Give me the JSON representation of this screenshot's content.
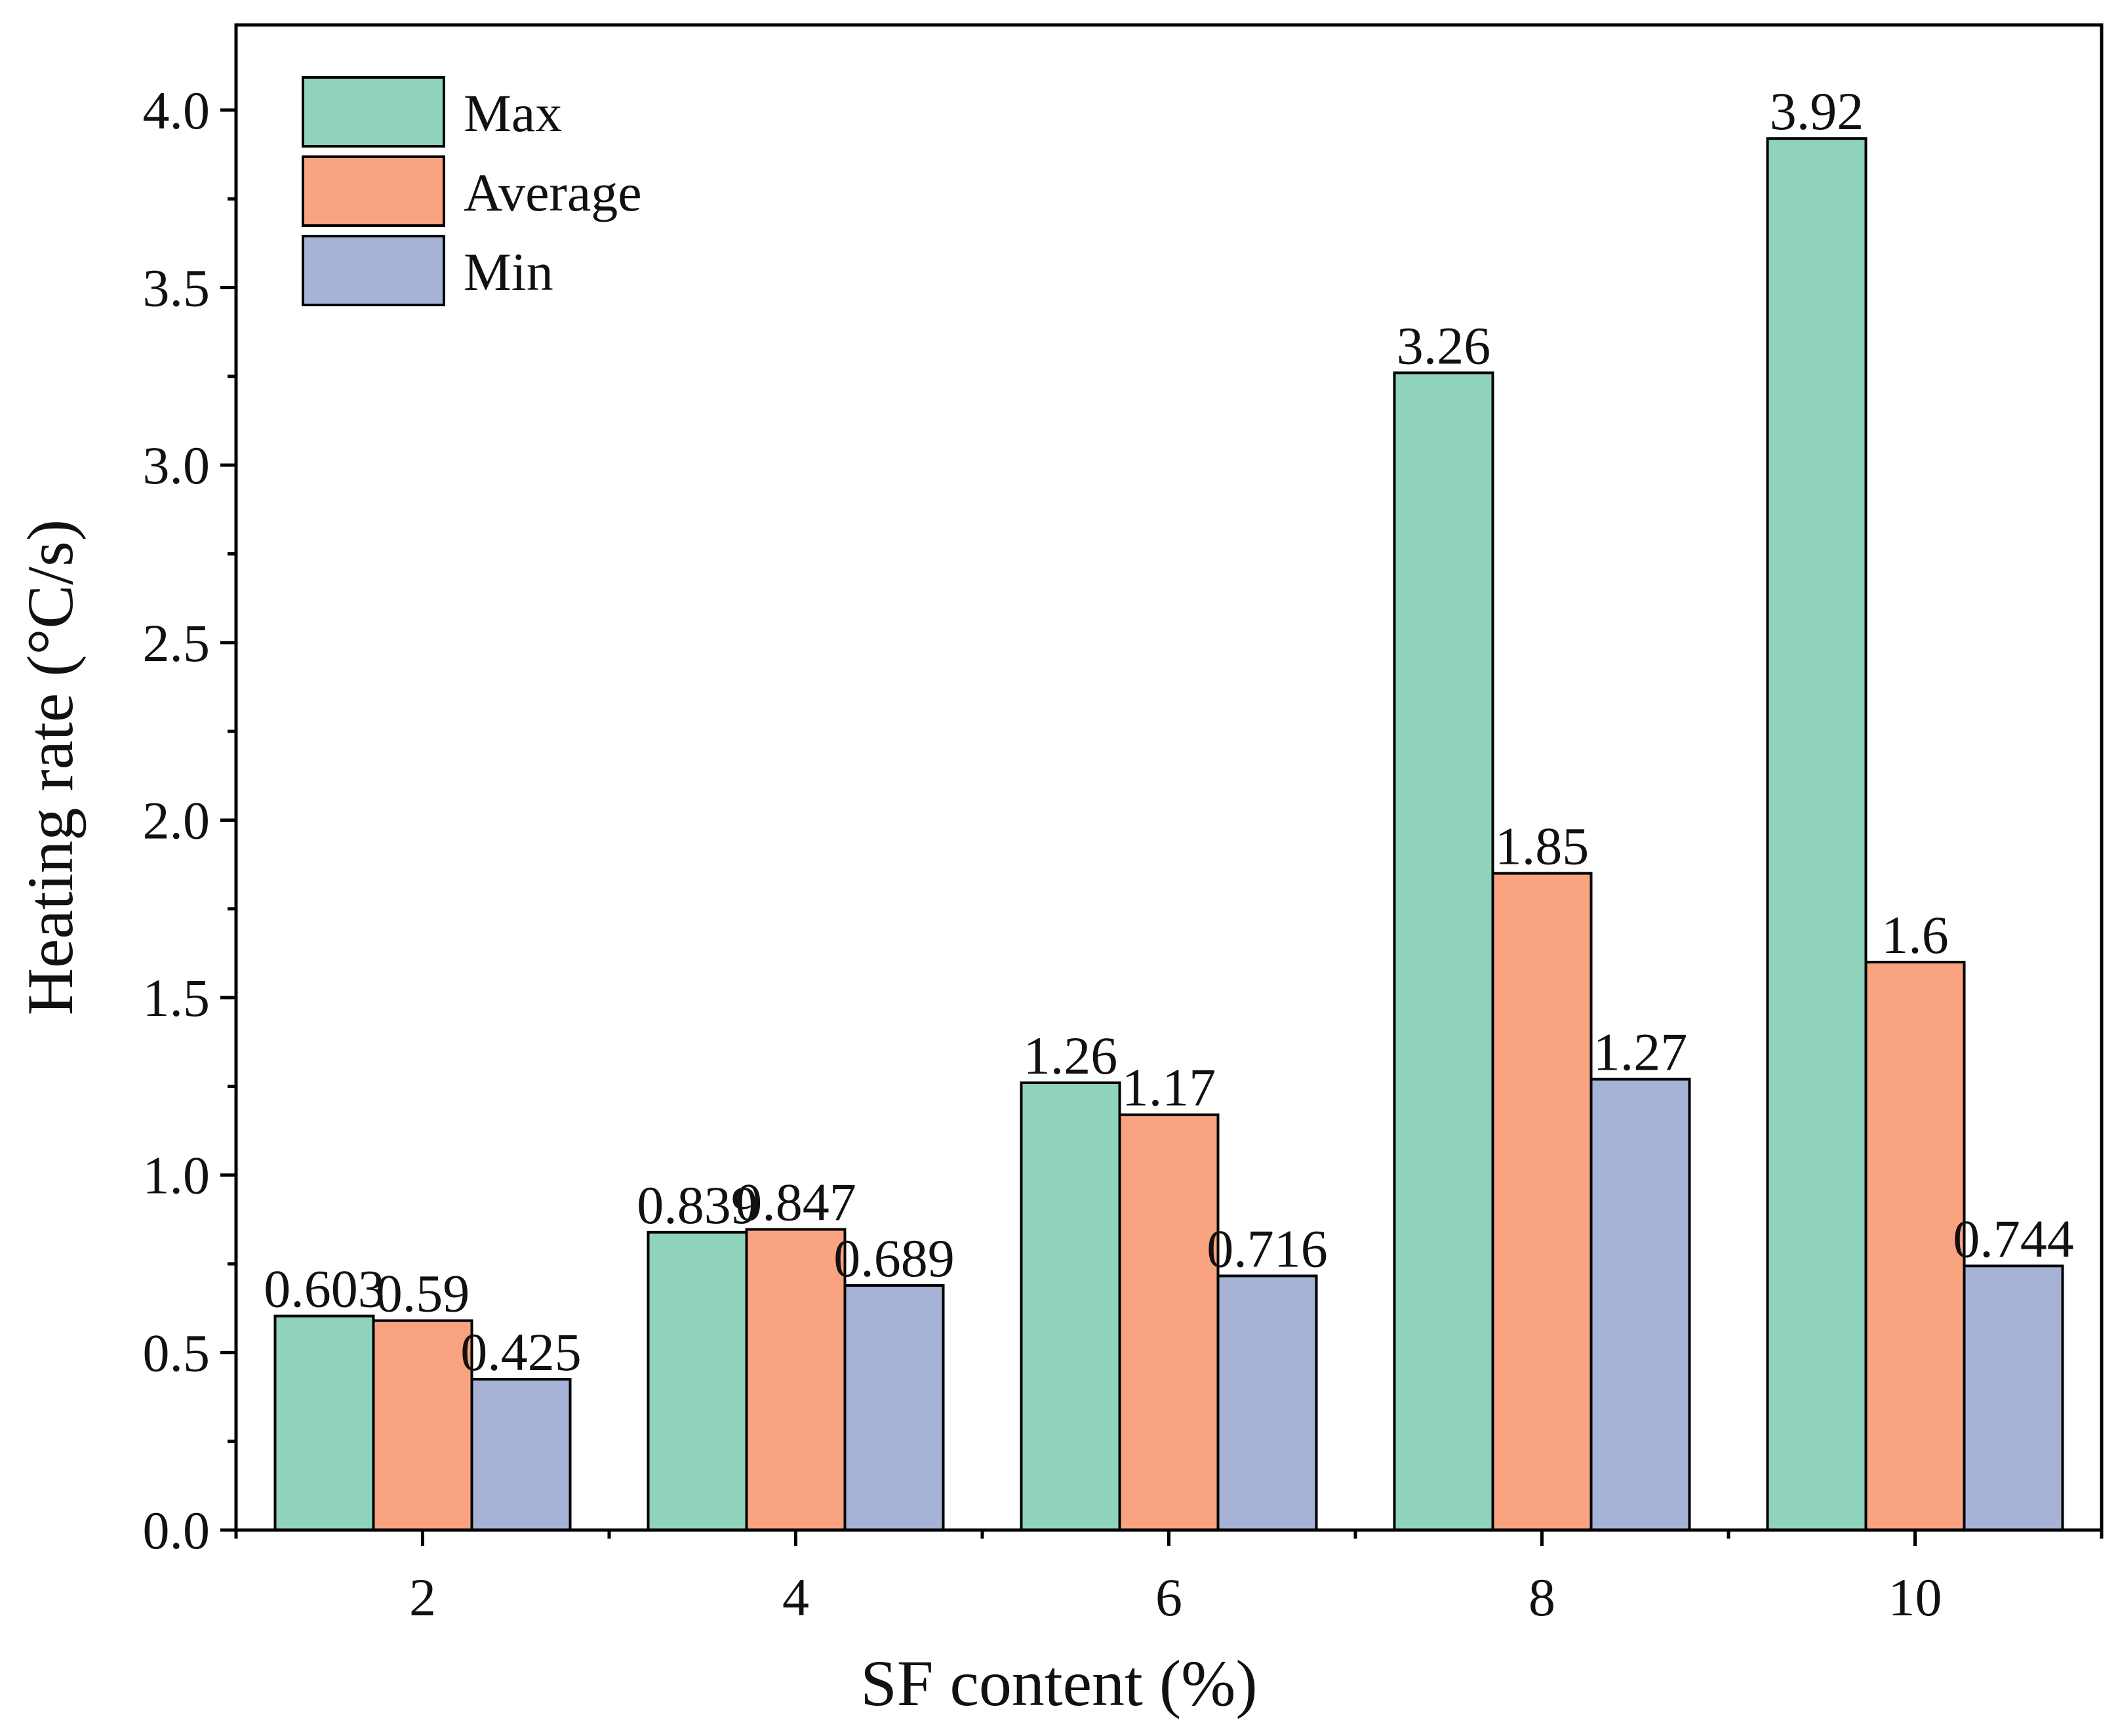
{
  "chart_data": {
    "type": "bar",
    "title": "",
    "xlabel": "SF content (%)",
    "ylabel": "Heating rate (°C/s)",
    "categories": [
      "2",
      "4",
      "6",
      "8",
      "10"
    ],
    "series": [
      {
        "name": "Max",
        "color": "#8fd3bb",
        "values": [
          0.603,
          0.839,
          1.26,
          3.26,
          3.92
        ],
        "labels": [
          "0.603",
          "0.839",
          "1.26",
          "3.26",
          "3.92"
        ]
      },
      {
        "name": "Average",
        "color": "#f9a380",
        "values": [
          0.59,
          0.847,
          1.17,
          1.85,
          1.6
        ],
        "labels": [
          "0.59",
          "0.847",
          "1.17",
          "1.85",
          "1.6"
        ]
      },
      {
        "name": "Min",
        "color": "#a6b3d7",
        "values": [
          0.425,
          0.689,
          0.716,
          1.27,
          0.744
        ],
        "labels": [
          "0.425",
          "0.689",
          "0.716",
          "1.27",
          "0.744"
        ]
      }
    ],
    "ylim": [
      0,
      4.24
    ],
    "yticks": [
      0.0,
      0.5,
      1.0,
      1.5,
      2.0,
      2.5,
      3.0,
      3.5,
      4.0
    ],
    "ytick_labels": [
      "0.0",
      "0.5",
      "1.0",
      "1.5",
      "2.0",
      "2.5",
      "3.0",
      "3.5",
      "4.0"
    ],
    "grid": false,
    "legend_position": "top-left"
  }
}
